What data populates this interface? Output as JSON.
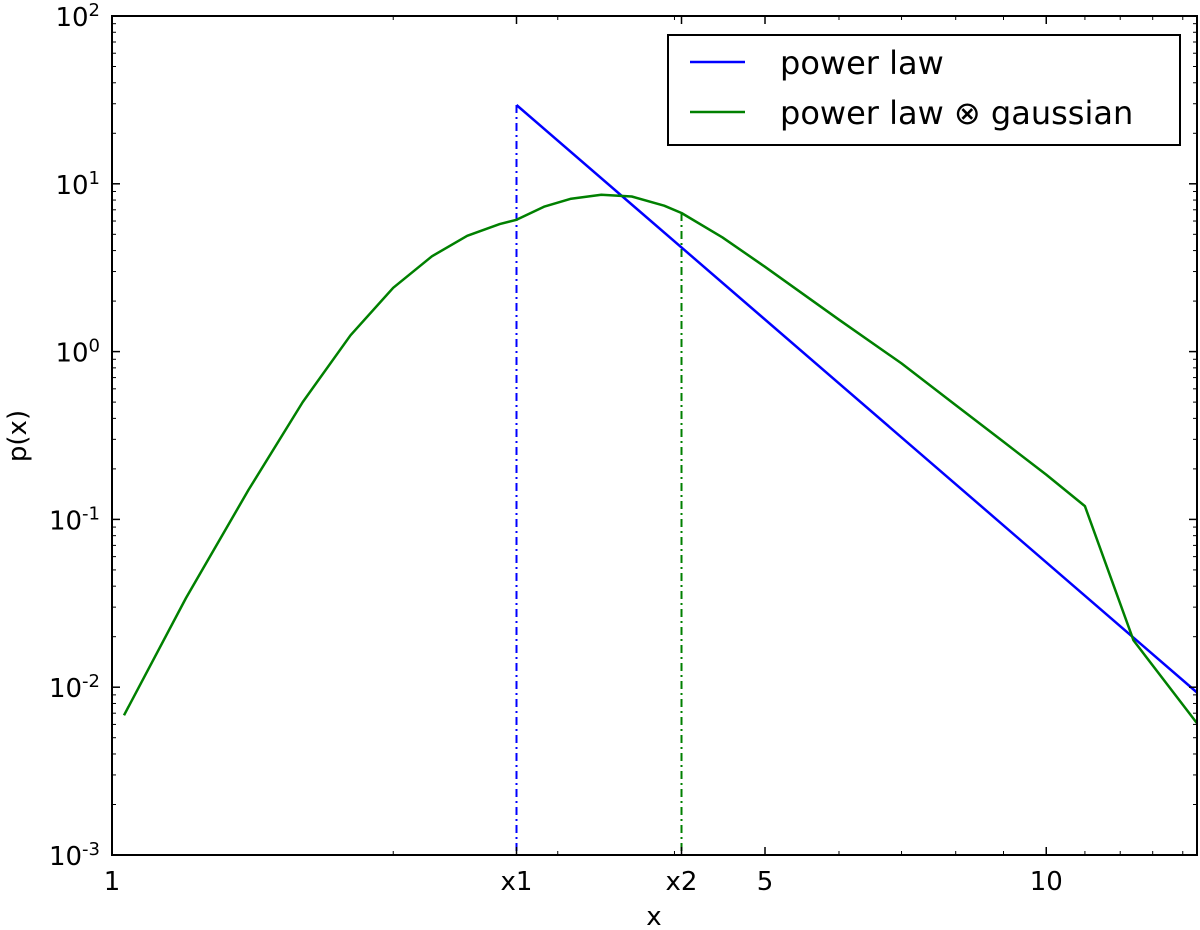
{
  "chart_data": {
    "type": "line",
    "xlabel": "x",
    "ylabel": "p(x)",
    "xscale": "log",
    "yscale": "log",
    "xlim": [
      1,
      14.5
    ],
    "ylim": [
      0.001,
      100
    ],
    "grid": false,
    "legend_position": "top-right",
    "x_ticks": [
      {
        "value": 1,
        "label": "1"
      },
      {
        "value": 2.71,
        "label": "x1"
      },
      {
        "value": 4.07,
        "label": "x2"
      },
      {
        "value": 5,
        "label": "5"
      },
      {
        "value": 10,
        "label": "10"
      }
    ],
    "y_ticks": [
      {
        "value": 0.001,
        "base": "10",
        "exp": "-3"
      },
      {
        "value": 0.01,
        "base": "10",
        "exp": "-2"
      },
      {
        "value": 0.1,
        "base": "10",
        "exp": "-1"
      },
      {
        "value": 1,
        "base": "10",
        "exp": "0"
      },
      {
        "value": 10,
        "base": "10",
        "exp": "1"
      },
      {
        "value": 100,
        "base": "10",
        "exp": "2"
      }
    ],
    "series": [
      {
        "name": "power law",
        "color": "#0000ff",
        "x": [
          2.71,
          14.5
        ],
        "y": [
          29.5,
          0.0093
        ]
      },
      {
        "name": "power law ⊗ gaussian",
        "color": "#008000",
        "x": [
          1.03,
          1.2,
          1.4,
          1.6,
          1.8,
          2.0,
          2.2,
          2.4,
          2.6,
          2.71,
          2.9,
          3.1,
          3.34,
          3.6,
          3.9,
          4.07,
          4.5,
          5.0,
          6.0,
          7.0,
          8.0,
          9.0,
          10.0,
          11.0,
          12.4,
          14.5
        ],
        "y": [
          0.0068,
          0.034,
          0.15,
          0.5,
          1.25,
          2.4,
          3.7,
          4.9,
          5.75,
          6.1,
          7.3,
          8.15,
          8.6,
          8.4,
          7.4,
          6.7,
          4.8,
          3.2,
          1.55,
          0.85,
          0.48,
          0.29,
          0.185,
          0.12,
          0.019,
          0.0061
        ]
      }
    ],
    "vlines": [
      {
        "x": 2.71,
        "y_top": 29.5,
        "color": "#0000ff",
        "style": "dashdot"
      },
      {
        "x": 4.07,
        "y_top": 6.7,
        "color": "#008000",
        "style": "dashdot"
      }
    ]
  }
}
